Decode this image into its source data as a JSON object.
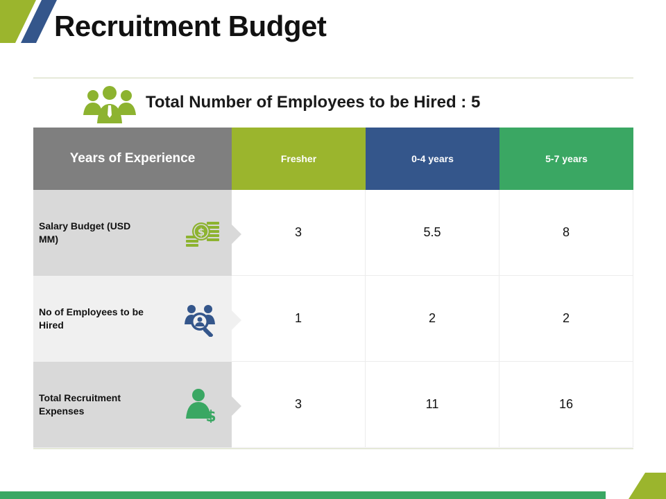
{
  "slide": {
    "title": "Recruitment Budget",
    "subtitle": "Total Number of Employees to be Hired : 5"
  },
  "table": {
    "header": {
      "label": "Years of Experience",
      "columns": [
        "Fresher",
        "0-4 years",
        "5-7 years"
      ]
    },
    "rows": [
      {
        "label": "Salary Budget (USD MM)",
        "icon": "money-icon",
        "values": [
          "3",
          "5.5",
          "8"
        ]
      },
      {
        "label": "No of Employees to be Hired",
        "icon": "candidate-search-icon",
        "values": [
          "1",
          "2",
          "2"
        ]
      },
      {
        "label": "Total Recruitment Expenses",
        "icon": "person-dollar-icon",
        "values": [
          "3",
          "11",
          "16"
        ]
      }
    ]
  },
  "colors": {
    "fresher": "#9bb52d",
    "years_0_4": "#34568b",
    "years_5_7": "#3aa763",
    "header_gray": "#7f7f7f"
  },
  "icons": {
    "header": "team-icon"
  }
}
